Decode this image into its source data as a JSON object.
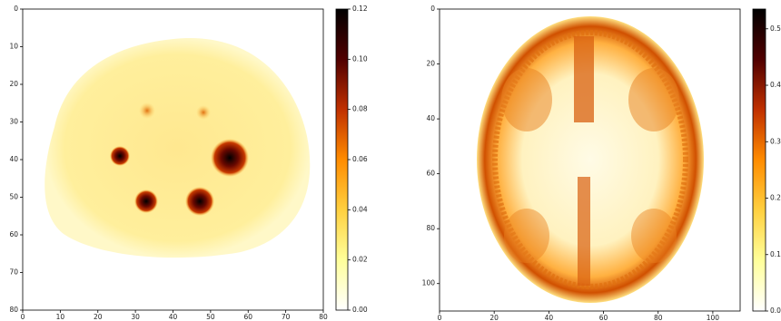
{
  "chart_data": [
    {
      "type": "heatmap",
      "xlim": [
        0,
        80
      ],
      "ylim": [
        80,
        0
      ],
      "xticks": [
        0,
        10,
        20,
        30,
        40,
        50,
        60,
        70,
        80
      ],
      "yticks": [
        0,
        10,
        20,
        30,
        40,
        50,
        60,
        70,
        80
      ],
      "clim": [
        0,
        0.12
      ],
      "cticks": [
        {
          "value": 0,
          "label": "0.00"
        },
        {
          "value": 0.02,
          "label": "0.02"
        },
        {
          "value": 0.04,
          "label": "0.04"
        },
        {
          "value": 0.06,
          "label": "0.06"
        },
        {
          "value": 0.08,
          "label": "0.08"
        },
        {
          "value": 0.1,
          "label": "0.10"
        },
        {
          "value": 0.12,
          "label": "0.12"
        }
      ],
      "colormap": [
        "#ffffff",
        "#ffff9a",
        "#ffd040",
        "#ff8c00",
        "#c03000",
        "#500000",
        "#000000"
      ]
    },
    {
      "type": "heatmap",
      "xlim": [
        0,
        110
      ],
      "ylim": [
        110,
        0
      ],
      "xticks": [
        0,
        20,
        40,
        60,
        80,
        100
      ],
      "yticks": [
        0,
        20,
        40,
        60,
        80,
        100
      ],
      "clim": [
        0,
        0.535
      ],
      "cticks": [
        {
          "value": 0,
          "label": "0.0"
        },
        0.1,
        0.2,
        0.3,
        0.4,
        0.5
      ],
      "colormap": [
        "#ffffff",
        "#ffff9a",
        "#ffd040",
        "#ff8c00",
        "#c03000",
        "#500000",
        "#000000"
      ]
    }
  ]
}
